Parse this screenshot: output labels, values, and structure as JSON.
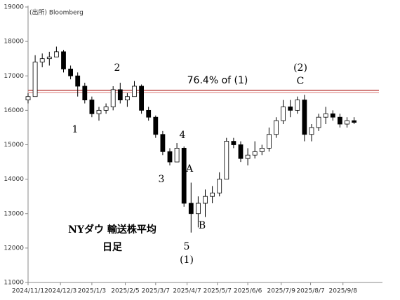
{
  "chart_data": {
    "type": "candlestick",
    "source": "(出所) Bloomberg",
    "x": [
      "2024-11-01",
      "2024-11-08",
      "2024-11-15",
      "2024-11-22",
      "2024-11-29",
      "2024-12-06",
      "2024-12-13",
      "2024-12-20",
      "2024-12-27",
      "2025-01-03",
      "2025-01-10",
      "2025-01-17",
      "2025-01-24",
      "2025-01-31",
      "2025-02-07",
      "2025-02-14",
      "2025-02-21",
      "2025-02-28",
      "2025-03-07",
      "2025-03-14",
      "2025-03-21",
      "2025-03-28",
      "2025-04-04",
      "2025-04-11",
      "2025-04-18",
      "2025-04-25",
      "2025-05-02",
      "2025-05-09",
      "2025-05-16",
      "2025-05-23",
      "2025-05-30",
      "2025-06-06",
      "2025-06-13",
      "2025-06-20",
      "2025-06-27",
      "2025-07-04",
      "2025-07-11",
      "2025-07-18",
      "2025-07-25",
      "2025-08-01",
      "2025-08-08",
      "2025-08-15",
      "2025-08-22",
      "2025-08-29",
      "2025-09-05",
      "2025-09-12",
      "2025-09-19"
    ],
    "open": [
      16300,
      16400,
      17400,
      17500,
      17550,
      17700,
      17200,
      17000,
      16700,
      16300,
      15900,
      16000,
      16100,
      16600,
      16300,
      16400,
      16700,
      16000,
      15800,
      15300,
      14800,
      14500,
      14900,
      13300,
      13000,
      13300,
      13500,
      13600,
      14000,
      15100,
      15000,
      14600,
      14700,
      14800,
      14900,
      15300,
      15700,
      16100,
      16000,
      16300,
      15300,
      15500,
      15800,
      15900,
      15800,
      15600,
      15700
    ],
    "high": [
      16500,
      17600,
      17650,
      17700,
      17850,
      17750,
      17300,
      17100,
      16800,
      16400,
      16100,
      16200,
      16700,
      16800,
      16500,
      16850,
      16750,
      16100,
      15850,
      15400,
      14900,
      15050,
      14950,
      13900,
      13500,
      13700,
      13800,
      14200,
      15200,
      15200,
      15100,
      14900,
      15100,
      15000,
      15500,
      15800,
      16300,
      16300,
      16400,
      16450,
      15600,
      15900,
      16100,
      16000,
      15900,
      15800,
      15800
    ],
    "low": [
      16200,
      16400,
      17250,
      17300,
      17550,
      17100,
      16900,
      16400,
      16200,
      15800,
      15700,
      15900,
      16000,
      16200,
      16100,
      16400,
      15900,
      15700,
      15200,
      14700,
      14400,
      14500,
      13200,
      12450,
      12600,
      12900,
      13300,
      13500,
      14000,
      14900,
      14500,
      14400,
      14600,
      14700,
      14800,
      15200,
      15600,
      15800,
      15900,
      15100,
      15100,
      15400,
      15600,
      15700,
      15500,
      15500,
      15600
    ],
    "close": [
      16400,
      17400,
      17500,
      17550,
      17700,
      17200,
      17000,
      16700,
      16300,
      15900,
      16000,
      16100,
      16600,
      16300,
      16400,
      16700,
      16000,
      15800,
      15300,
      14800,
      14500,
      14900,
      13300,
      13000,
      13300,
      13500,
      13600,
      14000,
      15100,
      15000,
      14600,
      14700,
      14800,
      14900,
      15300,
      15700,
      16100,
      16000,
      16300,
      15300,
      15500,
      15800,
      15900,
      15800,
      15600,
      15700,
      15650
    ],
    "xlim": [
      "2024-11-01",
      "2025-10-17"
    ],
    "xticks": [
      {
        "value": "2024-11-01",
        "label": "2024/11/1"
      },
      {
        "value": "2024-12-03",
        "label": "2024/12/3"
      },
      {
        "value": "2025-01-03",
        "label": "2025/1/3"
      },
      {
        "value": "2025-02-05",
        "label": "2025/2/5"
      },
      {
        "value": "2025-03-07",
        "label": "2025/3/7"
      },
      {
        "value": "2025-04-07",
        "label": "2025/4/7"
      },
      {
        "value": "2025-05-07",
        "label": "2025/5/7"
      },
      {
        "value": "2025-06-06",
        "label": "2025/6/6"
      },
      {
        "value": "2025-07-09",
        "label": "2025/7/9"
      },
      {
        "value": "2025-08-07",
        "label": "2025/8/7"
      },
      {
        "value": "2025-09-08",
        "label": "2025/9/8"
      }
    ],
    "ylim": [
      11000,
      19000
    ],
    "yticks": [
      11000,
      12000,
      13000,
      14000,
      15000,
      16000,
      17000,
      18000,
      19000
    ],
    "reference_lines": [
      {
        "value": 16580,
        "color": "#c0504d"
      },
      {
        "value": 16520,
        "color": "#e8a6a4"
      }
    ],
    "annotations": [
      "76.4% of (1)",
      "1",
      "2",
      "3",
      "4",
      "5",
      "(1)",
      "A",
      "B",
      "(2)",
      "C",
      "NYダウ 輸送株平均",
      "日足"
    ]
  }
}
